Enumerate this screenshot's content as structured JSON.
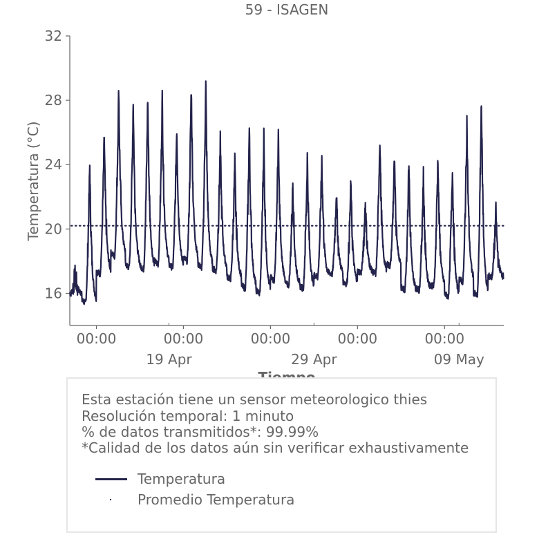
{
  "chart_data": {
    "type": "line",
    "title": "59 - ISAGEN",
    "xlabel": "Tiempo",
    "ylabel": "Temperatura (°C)",
    "ylim": [
      14,
      32
    ],
    "yticks": [
      16,
      20,
      24,
      28,
      32
    ],
    "xlim": [
      "2026-04-12 04:00",
      "2026-05-12 02:00"
    ],
    "xticks": [
      {
        "value": "2026-04-14 00:00",
        "label": "00:00",
        "sublabel": ""
      },
      {
        "value": "2026-04-20 00:00",
        "label": "00:00",
        "sublabel": "19 Apr"
      },
      {
        "value": "2026-04-26 00:00",
        "label": "00:00",
        "sublabel": ""
      },
      {
        "value": "2026-05-02 00:00",
        "label": "00:00",
        "sublabel": "29 Apr"
      },
      {
        "value": "2026-05-08 00:00",
        "label": "00:00",
        "sublabel": "09 May"
      }
    ],
    "xticks_minor": [
      "2026-04-19 00:00",
      "2026-04-29 00:00",
      "2026-05-09 00:00"
    ],
    "grid": false,
    "series": [
      {
        "name": "Temperatura",
        "style": "solid",
        "color": "#23234b",
        "daily_min": [
          16.0,
          15.4,
          17.2,
          18.3,
          17.6,
          17.5,
          17.8,
          17.6,
          18.0,
          17.6,
          17.4,
          16.9,
          16.3,
          16.0,
          16.8,
          16.5,
          16.3,
          17.0,
          17.2,
          16.6,
          17.3,
          17.2,
          17.7,
          16.2,
          16.2,
          16.4,
          15.8,
          16.7,
          15.8,
          17.0
        ],
        "daily_max": [
          17.2,
          24.0,
          25.8,
          28.9,
          28.0,
          28.2,
          28.1,
          26.4,
          28.9,
          28.9,
          25.4,
          24.1,
          26.2,
          25.8,
          25.8,
          23.0,
          24.5,
          24.4,
          22.3,
          22.8,
          21.7,
          25.8,
          24.2,
          24.2,
          23.3,
          24.5,
          24.0,
          26.7,
          28.3,
          21.0
        ]
      },
      {
        "name": "Promedio Temperatura",
        "style": "dotted",
        "color": "#23234b",
        "value": 20.2
      }
    ],
    "legend_position": "bottom-inside-box"
  },
  "info": {
    "lines": [
      "Esta estación tiene un sensor meteorologico thies",
      "Resolución temporal: 1 minuto",
      "% de datos transmitidos*: 99.99%",
      "*Calidad de los datos aún sin verificar exhaustivamente"
    ]
  }
}
